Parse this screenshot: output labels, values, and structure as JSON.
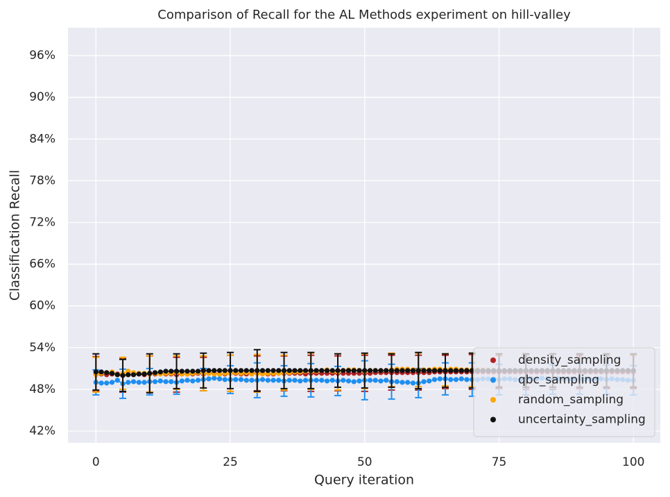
{
  "chart_data": {
    "type": "line",
    "title": "Comparison of Recall for the AL Methods experiment on hill-valley",
    "x_label": "Query iteration",
    "y_label": "Classification Recall",
    "x": [
      0,
      1,
      2,
      3,
      4,
      5,
      6,
      7,
      8,
      9,
      10,
      11,
      12,
      13,
      14,
      15,
      16,
      17,
      18,
      19,
      20,
      21,
      22,
      23,
      24,
      25,
      26,
      27,
      28,
      29,
      30,
      31,
      32,
      33,
      34,
      35,
      36,
      37,
      38,
      39,
      40,
      41,
      42,
      43,
      44,
      45,
      46,
      47,
      48,
      49,
      50,
      51,
      52,
      53,
      54,
      55,
      56,
      57,
      58,
      59,
      60,
      61,
      62,
      63,
      64,
      65,
      66,
      67,
      68,
      69,
      70,
      71,
      72,
      73,
      74,
      75,
      76,
      77,
      78,
      79,
      80,
      81,
      82,
      83,
      84,
      85,
      86,
      87,
      88,
      89,
      90,
      91,
      92,
      93,
      94,
      95,
      96,
      97,
      98,
      99,
      100
    ],
    "error_x": [
      0,
      5,
      10,
      15,
      20,
      25,
      30,
      35,
      40,
      45,
      50,
      55,
      60,
      65,
      70,
      75,
      80,
      85,
      90,
      95,
      100
    ],
    "xlim": [
      -5.2,
      105
    ],
    "xticks": [
      0,
      25,
      50,
      75,
      100
    ],
    "ylim": [
      40.3,
      100
    ],
    "yticks": [
      {
        "value": 42,
        "label": "42%"
      },
      {
        "value": 48,
        "label": "48%"
      },
      {
        "value": 54,
        "label": "54%"
      },
      {
        "value": 60,
        "label": "60%"
      },
      {
        "value": 66,
        "label": "66%"
      },
      {
        "value": 72,
        "label": "72%"
      },
      {
        "value": 78,
        "label": "78%"
      },
      {
        "value": 84,
        "label": "84%"
      },
      {
        "value": 90,
        "label": "90%"
      },
      {
        "value": 96,
        "label": "96%"
      }
    ],
    "grid": true,
    "legend": "lower right",
    "series": [
      {
        "name": "density_sampling",
        "color": "#b22222",
        "values": [
          50.2,
          50.2,
          50.1,
          50.2,
          50.2,
          50.0,
          50.1,
          50.2,
          50.2,
          50.1,
          50.2,
          50.2,
          50.3,
          50.2,
          50.2,
          50.1,
          50.2,
          50.2,
          50.2,
          50.3,
          50.2,
          50.3,
          50.3,
          50.2,
          50.2,
          50.3,
          50.3,
          50.2,
          50.2,
          50.3,
          50.3,
          50.3,
          50.2,
          50.2,
          50.3,
          50.3,
          50.3,
          50.3,
          50.3,
          50.2,
          50.3,
          50.3,
          50.3,
          50.3,
          50.3,
          50.3,
          50.3,
          50.3,
          50.3,
          50.3,
          50.3,
          50.3,
          50.4,
          50.4,
          50.4,
          50.4,
          50.4,
          50.4,
          50.4,
          50.4,
          50.4,
          50.4,
          50.4,
          50.5,
          50.5,
          50.5,
          50.5,
          50.5,
          50.5,
          50.5,
          50.5,
          50.5,
          50.5,
          50.5,
          50.5,
          50.5,
          50.5,
          50.5,
          50.5,
          50.5,
          50.5,
          50.5,
          50.5,
          50.5,
          50.5,
          50.5,
          50.5,
          50.5,
          50.5,
          50.5,
          50.5,
          50.5,
          50.5,
          50.5,
          50.5,
          50.5,
          50.5,
          50.5,
          50.5,
          50.5,
          50.5
        ],
        "errors": [
          2.5,
          2.4,
          2.6,
          2.5,
          2.4,
          2.6,
          2.5,
          2.5,
          2.6,
          2.5,
          2.6,
          2.5,
          2.5,
          2.4,
          2.5,
          2.4,
          2.5,
          2.5,
          2.4,
          2.4,
          2.4
        ]
      },
      {
        "name": "qbc_sampling",
        "color": "#1e8ff0",
        "values": [
          49.0,
          48.9,
          48.9,
          49.0,
          49.3,
          48.8,
          49.0,
          49.1,
          49.0,
          49.0,
          49.1,
          49.1,
          49.2,
          49.1,
          49.1,
          49.0,
          49.2,
          49.3,
          49.2,
          49.3,
          49.4,
          49.5,
          49.6,
          49.5,
          49.4,
          49.4,
          49.4,
          49.4,
          49.3,
          49.3,
          49.3,
          49.4,
          49.3,
          49.3,
          49.3,
          49.2,
          49.3,
          49.3,
          49.2,
          49.3,
          49.3,
          49.3,
          49.3,
          49.2,
          49.3,
          49.2,
          49.3,
          49.2,
          49.1,
          49.2,
          49.3,
          49.3,
          49.3,
          49.2,
          49.3,
          49.1,
          49.1,
          49.0,
          49.0,
          48.9,
          48.9,
          49.1,
          49.2,
          49.4,
          49.5,
          49.5,
          49.4,
          49.4,
          49.5,
          49.4,
          49.4,
          49.4,
          49.5,
          49.5,
          49.5,
          49.4,
          49.5,
          49.5,
          49.4,
          49.4,
          49.5,
          49.5,
          49.5,
          49.6,
          49.5,
          49.4,
          49.5,
          49.5,
          49.5,
          49.5,
          49.5,
          49.4,
          49.4,
          49.5,
          49.5,
          49.4,
          49.5,
          49.4,
          49.4,
          49.3,
          49.3
        ],
        "errors": [
          1.8,
          2.1,
          1.9,
          1.7,
          1.6,
          2.0,
          2.5,
          2.2,
          2.4,
          2.1,
          2.8,
          2.5,
          2.1,
          2.3,
          2.4,
          2.2,
          2.3,
          2.1,
          2.2,
          2.1,
          2.1
        ]
      },
      {
        "name": "random_sampling",
        "color": "#ffa500",
        "values": [
          50.1,
          50.3,
          50.4,
          50.5,
          50.1,
          50.3,
          50.6,
          50.4,
          50.3,
          50.3,
          50.2,
          50.3,
          50.2,
          50.3,
          50.3,
          50.4,
          50.2,
          50.2,
          50.3,
          50.4,
          50.3,
          50.3,
          50.2,
          50.2,
          50.3,
          50.3,
          50.4,
          50.3,
          50.4,
          50.2,
          50.3,
          50.2,
          50.3,
          50.3,
          50.3,
          50.4,
          50.4,
          50.5,
          50.5,
          50.6,
          50.6,
          50.6,
          50.7,
          50.8,
          50.6,
          50.5,
          50.7,
          50.8,
          50.8,
          50.7,
          50.6,
          50.7,
          50.7,
          50.7,
          50.7,
          50.8,
          50.9,
          50.9,
          50.9,
          50.8,
          50.8,
          50.8,
          50.8,
          50.9,
          50.9,
          50.8,
          50.9,
          50.9,
          50.8,
          50.8,
          50.8,
          50.8,
          50.8,
          50.7,
          50.7,
          50.7,
          50.7,
          50.7,
          50.7,
          50.7,
          50.7,
          50.7,
          50.7,
          50.7,
          50.7,
          50.7,
          50.7,
          50.7,
          50.7,
          50.7,
          50.7,
          50.7,
          50.7,
          50.7,
          50.7,
          50.7,
          50.7,
          50.7,
          50.7,
          50.7,
          50.7
        ],
        "errors": [
          2.5,
          2.3,
          2.6,
          2.4,
          2.5,
          2.6,
          2.7,
          2.5,
          2.6,
          2.6,
          2.5,
          2.4,
          2.4,
          2.3,
          2.4,
          2.3,
          2.4,
          2.3,
          2.4,
          2.3,
          2.3
        ]
      },
      {
        "name": "uncertainty_sampling",
        "color": "#111111",
        "values": [
          50.5,
          50.5,
          50.4,
          50.3,
          50.1,
          50.0,
          50.1,
          50.1,
          50.2,
          50.2,
          50.3,
          50.4,
          50.5,
          50.6,
          50.6,
          50.6,
          50.6,
          50.6,
          50.6,
          50.6,
          50.7,
          50.7,
          50.7,
          50.7,
          50.7,
          50.7,
          50.7,
          50.7,
          50.7,
          50.7,
          50.7,
          50.7,
          50.7,
          50.7,
          50.7,
          50.7,
          50.7,
          50.7,
          50.7,
          50.7,
          50.7,
          50.7,
          50.7,
          50.7,
          50.7,
          50.7,
          50.7,
          50.7,
          50.7,
          50.7,
          50.7,
          50.7,
          50.7,
          50.7,
          50.7,
          50.7,
          50.7,
          50.7,
          50.7,
          50.7,
          50.7,
          50.7,
          50.7,
          50.7,
          50.7,
          50.7,
          50.7,
          50.7,
          50.7,
          50.7,
          50.7,
          50.7,
          50.7,
          50.7,
          50.7,
          50.7,
          50.7,
          50.7,
          50.7,
          50.7,
          50.7,
          50.7,
          50.7,
          50.7,
          50.7,
          50.7,
          50.7,
          50.7,
          50.7,
          50.7,
          50.7,
          50.7,
          50.7,
          50.7,
          50.7,
          50.7,
          50.7,
          50.7,
          50.7,
          50.7,
          50.7
        ],
        "errors": [
          2.6,
          2.3,
          2.8,
          2.5,
          2.5,
          2.6,
          3.0,
          2.6,
          2.6,
          2.4,
          2.5,
          2.4,
          2.6,
          2.4,
          2.5,
          2.4,
          2.4,
          2.4,
          2.4,
          2.4,
          2.4
        ]
      }
    ]
  }
}
